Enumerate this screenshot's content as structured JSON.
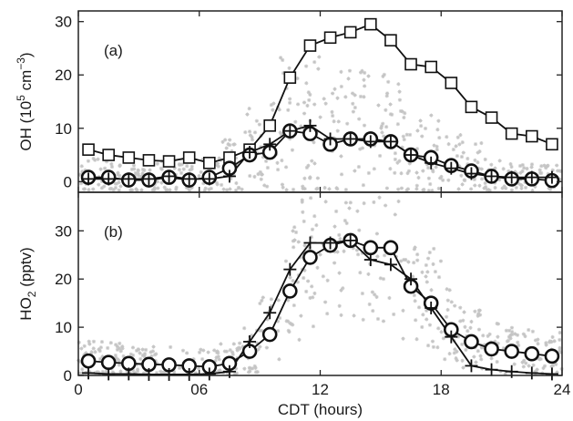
{
  "chart_data": [
    {
      "type": "line",
      "panel_label": "(a)",
      "ylabel_main": "OH (10",
      "ylabel_exp": "5",
      "ylabel_unit": " cm",
      "ylabel_unit_exp": "−3",
      "ylabel_close": ")",
      "xlim": [
        0,
        24
      ],
      "ylim": [
        -2,
        32
      ],
      "yticks": [
        "0",
        "10",
        "20",
        "30"
      ],
      "ytick_values": [
        0,
        10,
        20,
        30
      ],
      "series": [
        {
          "marker": "square",
          "x": [
            0.5,
            1.5,
            2.5,
            3.5,
            4.5,
            5.5,
            6.5,
            7.5,
            8.5,
            9.5,
            10.5,
            11.5,
            12.5,
            13.5,
            14.5,
            15.5,
            16.5,
            17.5,
            18.5,
            19.5,
            20.5,
            21.5,
            22.5,
            23.5
          ],
          "values": [
            6,
            5,
            4.5,
            4,
            3.8,
            4.5,
            3.5,
            4.5,
            6,
            10.5,
            19.5,
            25.5,
            27,
            28,
            29.5,
            26.5,
            22,
            21.5,
            18.5,
            14,
            12,
            9,
            8.5,
            7
          ]
        },
        {
          "marker": "circle",
          "x": [
            0.5,
            1.5,
            2.5,
            3.5,
            4.5,
            5.5,
            6.5,
            7.5,
            8.5,
            9.5,
            10.5,
            11.5,
            12.5,
            13.5,
            14.5,
            15.5,
            16.5,
            17.5,
            18.5,
            19.5,
            20.5,
            21.5,
            22.5,
            23.5
          ],
          "values": [
            0.8,
            0.8,
            0.3,
            0.3,
            0.8,
            0.3,
            0.8,
            2.5,
            5,
            5.5,
            9.5,
            9,
            7,
            8,
            8,
            7.5,
            5,
            4.5,
            3,
            2,
            1,
            0.5,
            0.5,
            0.2
          ]
        },
        {
          "marker": "plus",
          "x": [
            0.5,
            1.5,
            2.5,
            3.5,
            4.5,
            5.5,
            6.5,
            7.5,
            8.5,
            9.5,
            10.5,
            11.5,
            12.5,
            13.5,
            14.5,
            15.5,
            16.5,
            17.5,
            18.5,
            19.5,
            20.5,
            21.5,
            22.5,
            23.5
          ],
          "values": [
            0.5,
            0.5,
            0.5,
            0.5,
            1,
            0.5,
            0.5,
            1,
            5.5,
            7,
            9.5,
            10.5,
            8,
            8,
            7.5,
            7.5,
            5,
            3.5,
            2.5,
            1.5,
            1,
            0.8,
            0.8,
            0.8
          ]
        }
      ]
    },
    {
      "type": "line",
      "panel_label": "(b)",
      "ylabel_main": "HO",
      "ylabel_sub": "2",
      "ylabel_unit": " (pptv)",
      "xlabel": "CDT (hours)",
      "xlim": [
        0,
        24
      ],
      "ylim": [
        0,
        38
      ],
      "xticks": [
        "0",
        "06",
        "12",
        "18",
        "24"
      ],
      "xtick_values": [
        0,
        6,
        12,
        18,
        24
      ],
      "yticks": [
        "0",
        "10",
        "20",
        "30"
      ],
      "ytick_values": [
        0,
        10,
        20,
        30
      ],
      "series": [
        {
          "marker": "circle",
          "x": [
            0.5,
            1.5,
            2.5,
            3.5,
            4.5,
            5.5,
            6.5,
            7.5,
            8.5,
            9.5,
            10.5,
            11.5,
            12.5,
            13.5,
            14.5,
            15.5,
            16.5,
            17.5,
            18.5,
            19.5,
            20.5,
            21.5,
            22.5,
            23.5
          ],
          "values": [
            3,
            2.7,
            2.5,
            2.3,
            2.2,
            2,
            1.8,
            2.5,
            5,
            8.5,
            17.5,
            24.5,
            27,
            28,
            26.5,
            26.5,
            18.5,
            15,
            9.5,
            7,
            5.5,
            5,
            4.5,
            4
          ]
        },
        {
          "marker": "plus",
          "x": [
            0.5,
            1.5,
            2.5,
            3.5,
            4.5,
            5.5,
            6.5,
            7.5,
            8.5,
            9.5,
            10.5,
            11.5,
            12.5,
            13.5,
            14.5,
            15.5,
            16.5,
            17.5,
            18.5,
            19.5,
            20.5,
            21.5,
            22.5,
            23.5
          ],
          "values": [
            0.5,
            0.3,
            0.3,
            0.2,
            0.2,
            0.2,
            0.3,
            0.8,
            7,
            13,
            22,
            27.5,
            27.5,
            28,
            24,
            23,
            20,
            14,
            8,
            2,
            1.2,
            0.8,
            0.5,
            0.3
          ]
        }
      ]
    }
  ]
}
